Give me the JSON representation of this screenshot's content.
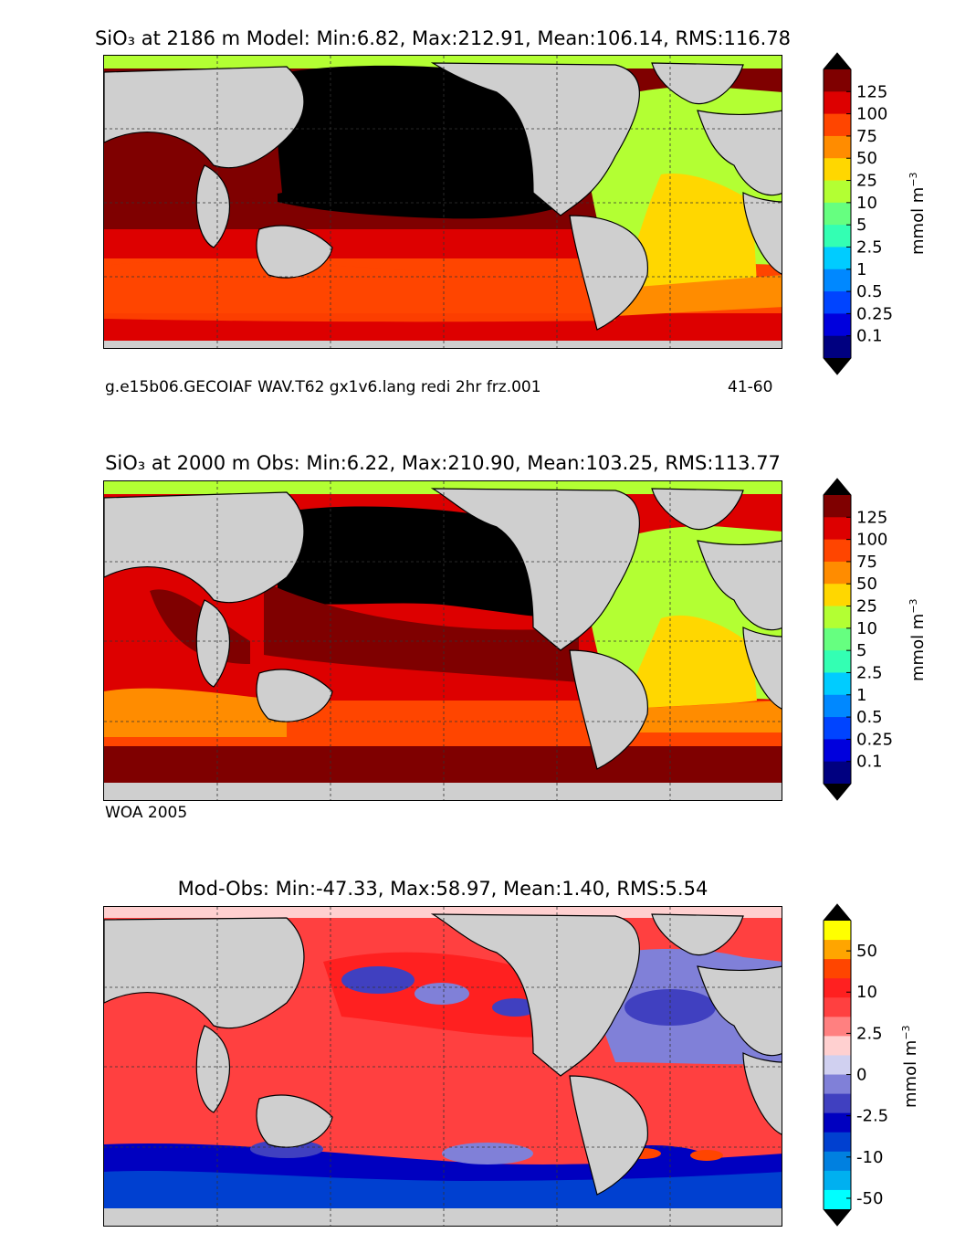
{
  "panels": [
    {
      "title": "SiO₃ at 2186 m Model: Min:6.82, Max:212.91, Mean:106.14, RMS:116.78",
      "caption_left": "g.e15b06.GECOIAF WAV.T62 gx1v6.lang redi 2hr frz.001",
      "caption_right": "41-60",
      "kind": "model"
    },
    {
      "title": "SiO₃ at 2000 m Obs: Min:6.22, Max:210.90, Mean:103.25, RMS:113.77",
      "caption_left": "WOA 2005",
      "caption_right": "",
      "kind": "obs"
    },
    {
      "title": "Mod-Obs: Min:-47.33, Max:58.97, Mean:1.40, RMS:5.54",
      "caption_left": "",
      "caption_right": "",
      "kind": "diff"
    }
  ],
  "colorbar_main": {
    "units": "mmol m",
    "units_exp": "−3",
    "labels": [
      "125",
      "100",
      "75",
      "50",
      "25",
      "10",
      "5",
      "2.5",
      "1",
      "0.5",
      "0.25",
      "0.1"
    ],
    "colors": [
      "#7f0000",
      "#dd0000",
      "#ff4500",
      "#ff8c00",
      "#ffd700",
      "#b3ff33",
      "#66ff80",
      "#33ffb3",
      "#00ccff",
      "#0088ff",
      "#0044ff",
      "#0000dd",
      "#000080"
    ],
    "over": "#000000",
    "under": "#000000"
  },
  "colorbar_diff": {
    "units": "mmol m",
    "units_exp": "−3",
    "labels": [
      "50",
      "10",
      "2.5",
      "0",
      "-2.5",
      "-10",
      "-50"
    ],
    "colors": [
      "#ffff00",
      "#ffa500",
      "#ff4500",
      "#ff2020",
      "#ff4040",
      "#ff8080",
      "#ffd0d0",
      "#d0d0f0",
      "#8080d8",
      "#4040c0",
      "#0000c0",
      "#0040d0",
      "#0080e0",
      "#00b0f0",
      "#00ffff"
    ],
    "over": "#000000",
    "under": "#000000"
  }
}
